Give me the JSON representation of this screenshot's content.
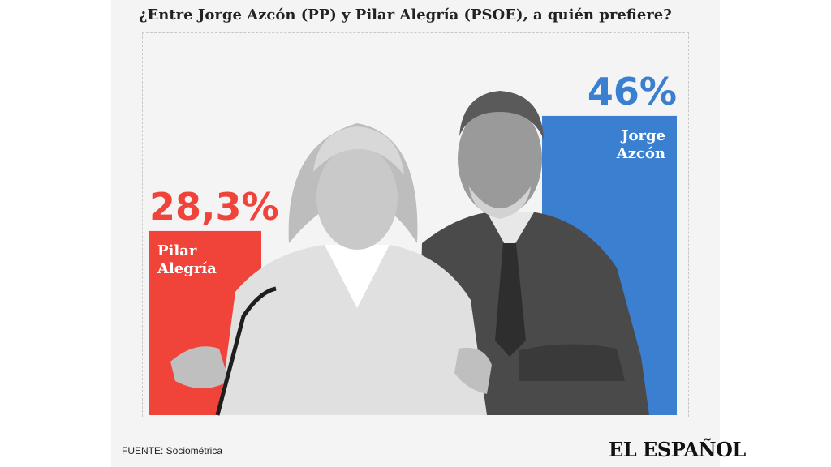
{
  "title": "¿Entre Jorge Azcón (PP) y Pilar Alegría (PSOE), a quién prefiere?",
  "source": "FUENTE: Sociométrica",
  "logo": "EL ESPAÑOL",
  "colors": {
    "psoe": "#f0433a",
    "pp": "#3a7fd0",
    "background": "#f4f4f4"
  },
  "chart_data": {
    "type": "bar",
    "title": "¿Entre Jorge Azcón (PP) y Pilar Alegría (PSOE), a quién prefiere?",
    "categories": [
      "Pilar Alegría",
      "Jorge Azcón"
    ],
    "values": [
      28.3,
      46
    ],
    "value_labels": [
      "28,3%",
      "46%"
    ],
    "category_lines": [
      [
        "Pilar",
        "Alegría"
      ],
      [
        "Jorge",
        "Azcón"
      ]
    ],
    "ylim": [
      0,
      50
    ],
    "grid": false,
    "legend": "none"
  }
}
